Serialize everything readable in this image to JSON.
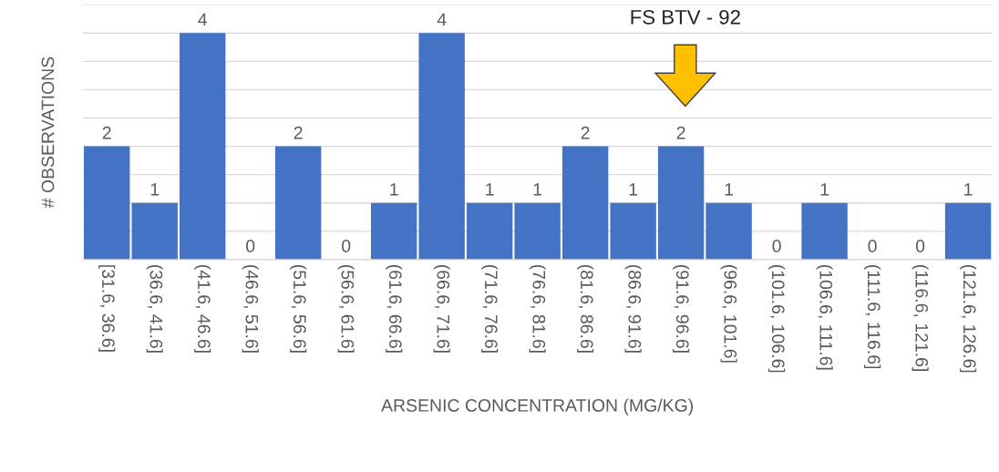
{
  "chart_data": {
    "type": "bar",
    "xlabel": "ARSENIC CONCENTRATION (MG/KG)",
    "ylabel": "# OBSERVATIONS",
    "categories": [
      "[31.6, 36.6]",
      "(36.6, 41.6]",
      "(41.6, 46.6]",
      "(46.6, 51.6]",
      "(51.6, 56.6]",
      "(56.6, 61.6]",
      "(61.6, 66.6]",
      "(66.6, 71.6]",
      "(71.6, 76.6]",
      "(76.6, 81.6]",
      "(81.6, 86.6]",
      "(86.6, 91.6]",
      "(91.6, 96.6]",
      "(96.6, 101.6]",
      "(101.6, 106.6]",
      "(106.6, 111.6]",
      "(111.6, 116.6]",
      "(116.6, 121.6]",
      "(121.6, 126.6]"
    ],
    "values": [
      2,
      1,
      4,
      0,
      2,
      0,
      1,
      4,
      1,
      1,
      2,
      1,
      2,
      1,
      0,
      1,
      0,
      0,
      1
    ],
    "color": "#4472c4",
    "data_labels": true,
    "ylim": [
      0,
      4.5
    ],
    "yticks": [
      {
        "value": 0,
        "label": null
      },
      {
        "value": 0.5,
        "label": null
      },
      {
        "value": 1,
        "label": null
      },
      {
        "value": 1.5,
        "label": null
      },
      {
        "value": 2,
        "label": null
      },
      {
        "value": 2.5,
        "label": null
      },
      {
        "value": 3,
        "label": null
      },
      {
        "value": 3.5,
        "label": null
      },
      {
        "value": 4,
        "label": null
      },
      {
        "value": 4.5,
        "label": null
      }
    ],
    "tick_labels": "x",
    "grid": "y",
    "annotations": [
      "FS BTV - 92"
    ]
  }
}
